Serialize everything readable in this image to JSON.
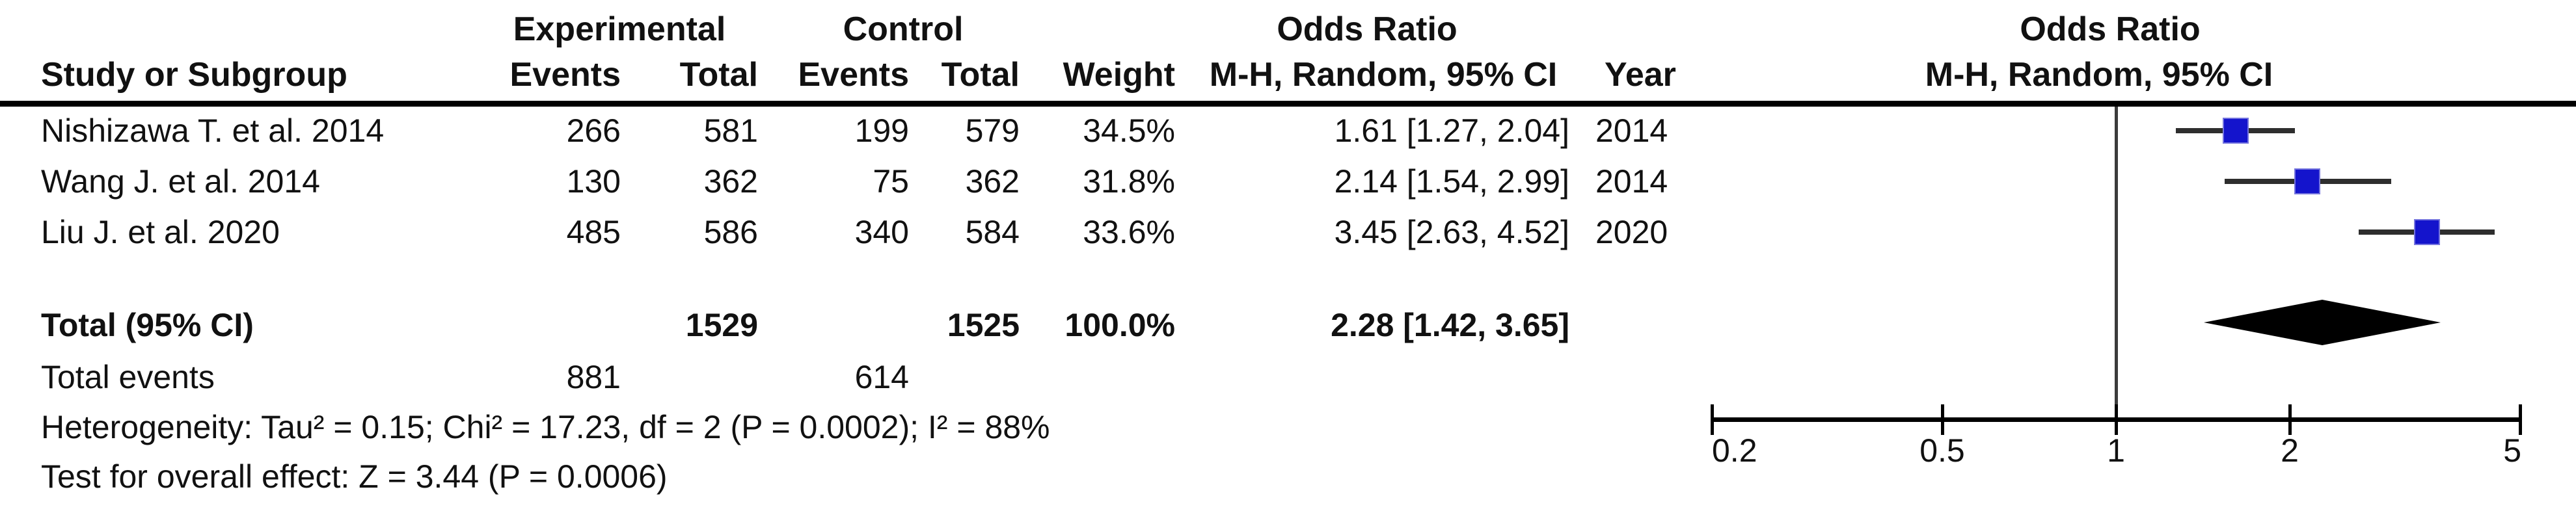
{
  "table": {
    "group_headers": {
      "experimental": "Experimental",
      "control": "Control",
      "odds_ratio_left": "Odds Ratio",
      "odds_ratio_right": "Odds Ratio"
    },
    "column_headers": {
      "study": "Study or Subgroup",
      "exp_events": "Events",
      "exp_total": "Total",
      "ctl_events": "Events",
      "ctl_total": "Total",
      "weight": "Weight",
      "mh_ci_left": "M-H, Random, 95% CI",
      "year": "Year",
      "mh_ci_right": "M-H, Random, 95% CI"
    },
    "rows": [
      {
        "study": "Nishizawa T. et al. 2014",
        "exp_events": "266",
        "exp_total": "581",
        "ctl_events": "199",
        "ctl_total": "579",
        "weight": "34.5%",
        "or_ci": "1.61 [1.27, 2.04]",
        "year": "2014"
      },
      {
        "study": "Wang J. et al. 2014",
        "exp_events": "130",
        "exp_total": "362",
        "ctl_events": "75",
        "ctl_total": "362",
        "weight": "31.8%",
        "or_ci": "2.14 [1.54, 2.99]",
        "year": "2014"
      },
      {
        "study": "Liu J. et al. 2020",
        "exp_events": "485",
        "exp_total": "586",
        "ctl_events": "340",
        "ctl_total": "584",
        "weight": "33.6%",
        "or_ci": "3.45 [2.63, 4.52]",
        "year": "2020"
      }
    ],
    "total_row": {
      "label": "Total (95% CI)",
      "exp_total": "1529",
      "ctl_total": "1525",
      "weight": "100.0%",
      "or_ci": "2.28 [1.42, 3.65]"
    },
    "total_events_row": {
      "label": "Total events",
      "exp_events": "881",
      "ctl_events": "614"
    }
  },
  "footnotes": {
    "heterogeneity": "Heterogeneity: Tau² = 0.15; Chi² = 17.23, df = 2 (P = 0.0002); I² = 88%",
    "overall_effect": "Test for overall effect: Z = 3.44 (P = 0.0006)"
  },
  "colors": {
    "marker_blue": "#1414CC",
    "marker_border": "#7575DE",
    "diamond_black": "#000000",
    "ci_line": "#2e2e2e",
    "text": "#111111"
  },
  "chart_data": {
    "type": "forest",
    "effect_measure": "Odds Ratio",
    "method": "M-H, Random, 95% CI",
    "x_scale": "log",
    "xlim": [
      0.2,
      5
    ],
    "x_ticks": [
      "0.2",
      "0.5",
      "1",
      "2",
      "5"
    ],
    "x_tick_values": [
      0.2,
      0.5,
      1,
      2,
      5
    ],
    "null_line": 1,
    "studies": [
      {
        "name": "Nishizawa T. et al. 2014",
        "or": 1.61,
        "ci_low": 1.27,
        "ci_high": 2.04,
        "weight_pct": 34.5,
        "year": 2014
      },
      {
        "name": "Wang J. et al. 2014",
        "or": 2.14,
        "ci_low": 1.54,
        "ci_high": 2.99,
        "weight_pct": 31.8,
        "year": 2014
      },
      {
        "name": "Liu J. et al. 2020",
        "or": 3.45,
        "ci_low": 2.63,
        "ci_high": 4.52,
        "weight_pct": 33.6,
        "year": 2020
      }
    ],
    "total": {
      "or": 2.28,
      "ci_low": 1.42,
      "ci_high": 3.65,
      "weight_pct": 100.0
    },
    "heterogeneity": {
      "tau2": 0.15,
      "chi2": 17.23,
      "df": 2,
      "p": 0.0002,
      "i2_pct": 88
    },
    "overall_effect": {
      "z": 3.44,
      "p": 0.0006
    },
    "marker": "square",
    "summary_marker": "diamond"
  }
}
